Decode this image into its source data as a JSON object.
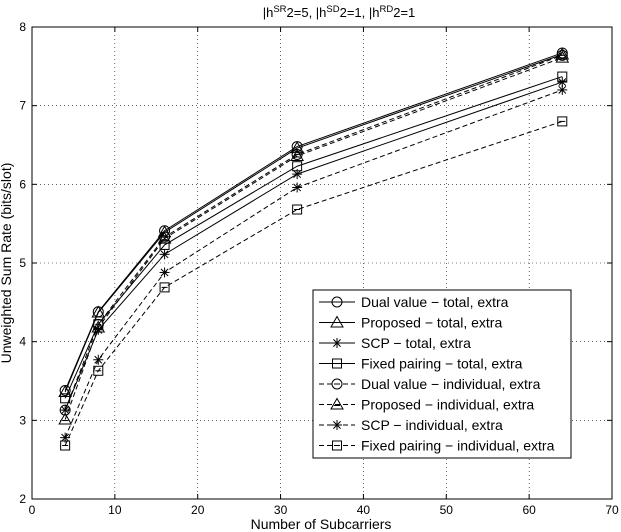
{
  "chart_data": {
    "type": "line",
    "title_parts": {
      "h_sr": "|h",
      "sr": "SR",
      "sq1": "2",
      "eq1": "=5, |h",
      "sd": "SD",
      "sq2": "2",
      "eq2": "=1, |h",
      "rd": "RD",
      "sq3": "2",
      "eq3": "=1"
    },
    "xlabel": "Number of Subcarriers",
    "ylabel": "Unweighted Sum Rate (bits/slot)",
    "xlim": [
      0,
      70
    ],
    "ylim": [
      2,
      8
    ],
    "xticks": [
      "0",
      "10",
      "20",
      "30",
      "40",
      "50",
      "60",
      "70"
    ],
    "yticks": [
      "2",
      "3",
      "4",
      "5",
      "6",
      "7",
      "8"
    ],
    "grid": "dotted",
    "legend_position": "bottom-right",
    "x": [
      4,
      8,
      16,
      32,
      64
    ],
    "series": [
      {
        "name": "Dual value − total, extra",
        "marker": "circle",
        "dash": "solid",
        "values": [
          3.38,
          4.38,
          5.41,
          6.48,
          7.67
        ]
      },
      {
        "name": "Proposed − total, extra",
        "marker": "triangle",
        "dash": "solid",
        "values": [
          3.36,
          4.37,
          5.39,
          6.46,
          7.65
        ]
      },
      {
        "name": "SCP − total, extra",
        "marker": "star",
        "dash": "solid",
        "values": [
          3.13,
          4.15,
          5.11,
          6.13,
          7.3
        ]
      },
      {
        "name": "Fixed pairing − total, extra",
        "marker": "square",
        "dash": "solid",
        "values": [
          3.28,
          4.22,
          5.23,
          6.23,
          7.37
        ]
      },
      {
        "name": "Dual value − individual, extra",
        "marker": "circle-minus",
        "dash": "dashed",
        "values": [
          3.13,
          4.22,
          5.33,
          6.38,
          7.64
        ]
      },
      {
        "name": "Proposed − individual, extra",
        "marker": "triangle-minus",
        "dash": "dashed",
        "values": [
          3.01,
          4.18,
          5.31,
          6.36,
          7.61
        ]
      },
      {
        "name": "SCP − individual, extra",
        "marker": "star",
        "dash": "dashed",
        "values": [
          2.78,
          3.77,
          4.88,
          5.96,
          7.2
        ]
      },
      {
        "name": "Fixed pairing − individual, extra",
        "marker": "square-minus",
        "dash": "dashed",
        "values": [
          2.68,
          3.63,
          4.69,
          5.68,
          6.8
        ]
      }
    ]
  }
}
